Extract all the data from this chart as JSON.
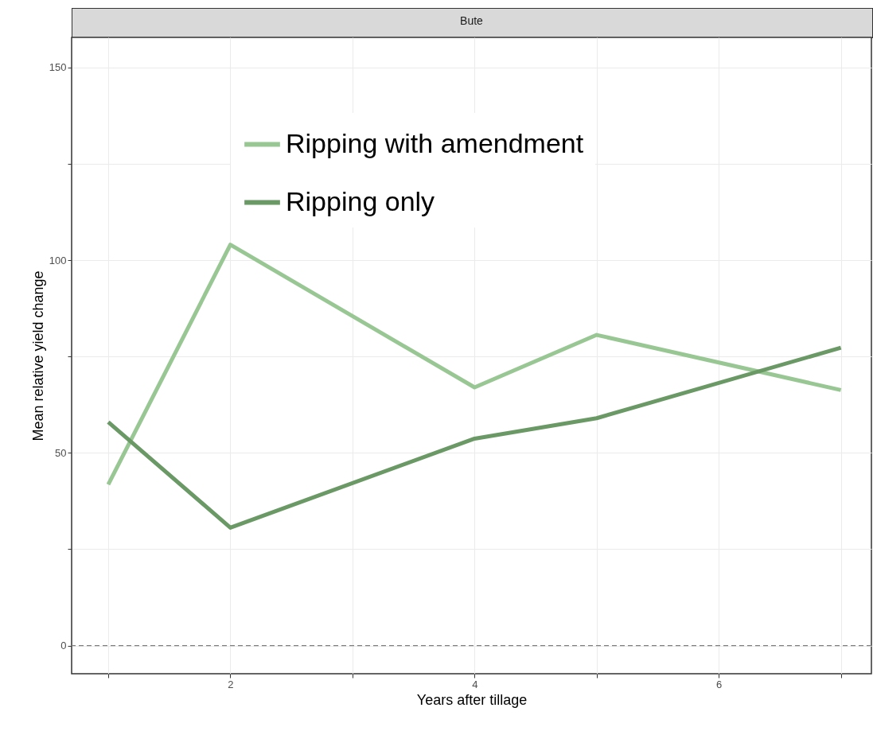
{
  "chart_data": {
    "type": "line",
    "title": "Bute",
    "xlabel": "Years after tillage",
    "ylabel": "Mean relative yield change",
    "series": [
      {
        "name": "Ripping with amendment",
        "color": "#98c794",
        "x": [
          1,
          2,
          4,
          5,
          7
        ],
        "values": [
          41.8,
          104,
          67,
          80.6,
          66.3
        ]
      },
      {
        "name": "Ripping only",
        "color": "#6a9966",
        "x": [
          1,
          2,
          4,
          5,
          7
        ],
        "values": [
          58,
          30.6,
          53.7,
          59,
          77.3
        ]
      }
    ],
    "xlim": [
      0.7,
      7.25
    ],
    "xticks": [
      {
        "value": 1,
        "label": null
      },
      2,
      {
        "value": 3,
        "label": null
      },
      4,
      {
        "value": 5,
        "label": null
      },
      6,
      {
        "value": 7,
        "label": null
      }
    ],
    "ylim": [
      -7.3,
      157.8
    ],
    "yticks": [
      0,
      {
        "value": 25,
        "label": null
      },
      50,
      {
        "value": 75,
        "label": null
      },
      100,
      {
        "value": 125,
        "label": null
      },
      150
    ],
    "ref_lines": [
      {
        "axis": "y",
        "value": 0,
        "color": "#808080",
        "line_style": "dashed"
      }
    ],
    "grid": true,
    "legend": "top",
    "line_style": "solid",
    "marker": "none"
  }
}
